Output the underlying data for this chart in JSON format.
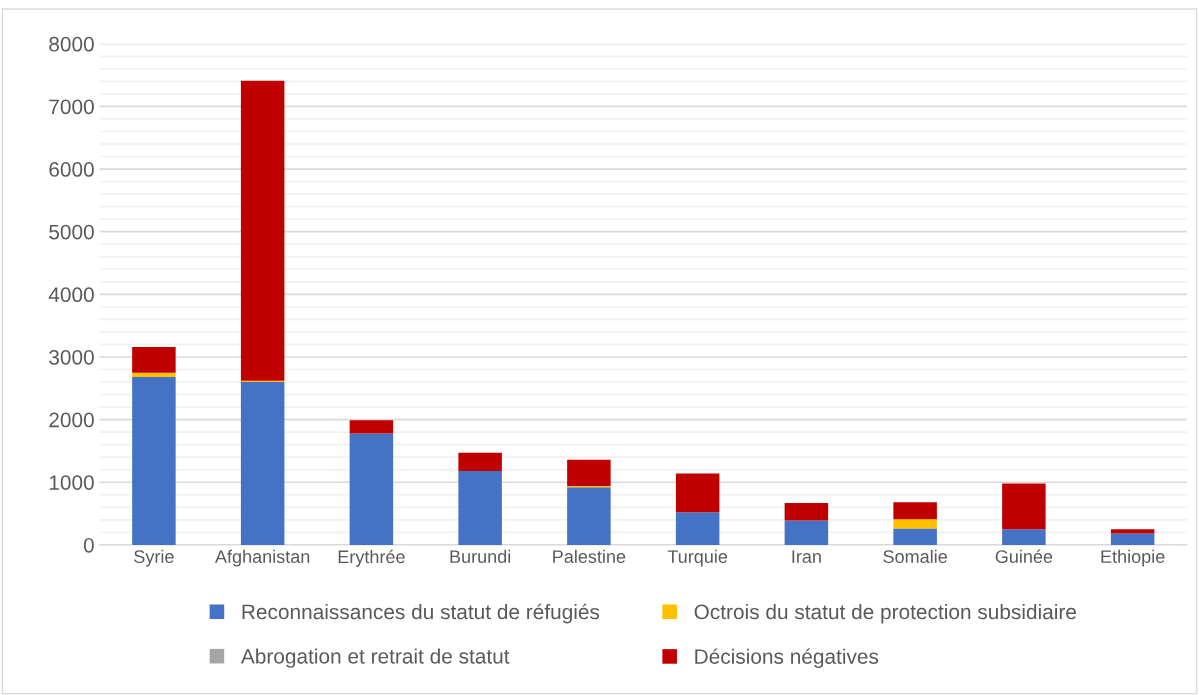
{
  "chart_data": {
    "type": "bar",
    "stacked": true,
    "categories": [
      "Syrie",
      "Afghanistan",
      "Erythrée",
      "Burundi",
      "Palestine",
      "Turquie",
      "Iran",
      "Somalie",
      "Guinée",
      "Ethiopie"
    ],
    "series": [
      {
        "name": "Reconnaissances du statut de réfugiés",
        "color": "#4472c4",
        "values": [
          2680,
          2600,
          1780,
          1180,
          920,
          520,
          390,
          260,
          250,
          180
        ]
      },
      {
        "name": "Octrois du statut de protection subsidiaire",
        "color": "#ffc000",
        "values": [
          70,
          20,
          0,
          0,
          20,
          0,
          0,
          150,
          0,
          0
        ]
      },
      {
        "name": "Abrogation et retrait de statut",
        "color": "#a5a5a5",
        "values": [
          0,
          0,
          0,
          0,
          0,
          null,
          0,
          0,
          0,
          0
        ]
      },
      {
        "name": "Décisions négatives",
        "color": "#c00000",
        "values": [
          410,
          4790,
          210,
          290,
          420,
          620,
          280,
          270,
          730,
          70
        ]
      }
    ],
    "ylim": [
      0,
      8000
    ],
    "yticks": [
      0,
      {
        "value": 200,
        "label": null
      },
      {
        "value": 400,
        "label": null
      },
      {
        "value": 600,
        "label": null
      },
      {
        "value": 800,
        "label": null
      },
      1000,
      {
        "value": 1200,
        "label": null
      },
      {
        "value": 1400,
        "label": null
      },
      {
        "value": 1600,
        "label": null
      },
      {
        "value": 1800,
        "label": null
      },
      2000,
      {
        "value": 2200,
        "label": null
      },
      {
        "value": 2400,
        "label": null
      },
      {
        "value": 2600,
        "label": null
      },
      {
        "value": 2800,
        "label": null
      },
      3000,
      {
        "value": 3200,
        "label": null
      },
      {
        "value": 3400,
        "label": null
      },
      {
        "value": 3600,
        "label": null
      },
      {
        "value": 3800,
        "label": null
      },
      4000,
      {
        "value": 4200,
        "label": null
      },
      {
        "value": 4400,
        "label": null
      },
      {
        "value": 4600,
        "label": null
      },
      {
        "value": 4800,
        "label": null
      },
      5000,
      {
        "value": 5200,
        "label": null
      },
      {
        "value": 5400,
        "label": null
      },
      {
        "value": 5600,
        "label": null
      },
      {
        "value": 5800,
        "label": null
      },
      6000,
      {
        "value": 6200,
        "label": null
      },
      {
        "value": 6400,
        "label": null
      },
      {
        "value": 6600,
        "label": null
      },
      {
        "value": 6800,
        "label": null
      },
      7000,
      {
        "value": 7200,
        "label": null
      },
      {
        "value": 7400,
        "label": null
      },
      {
        "value": 7600,
        "label": null
      },
      {
        "value": 7800,
        "label": null
      },
      8000
    ],
    "grid": "y",
    "legend": "bottom"
  }
}
